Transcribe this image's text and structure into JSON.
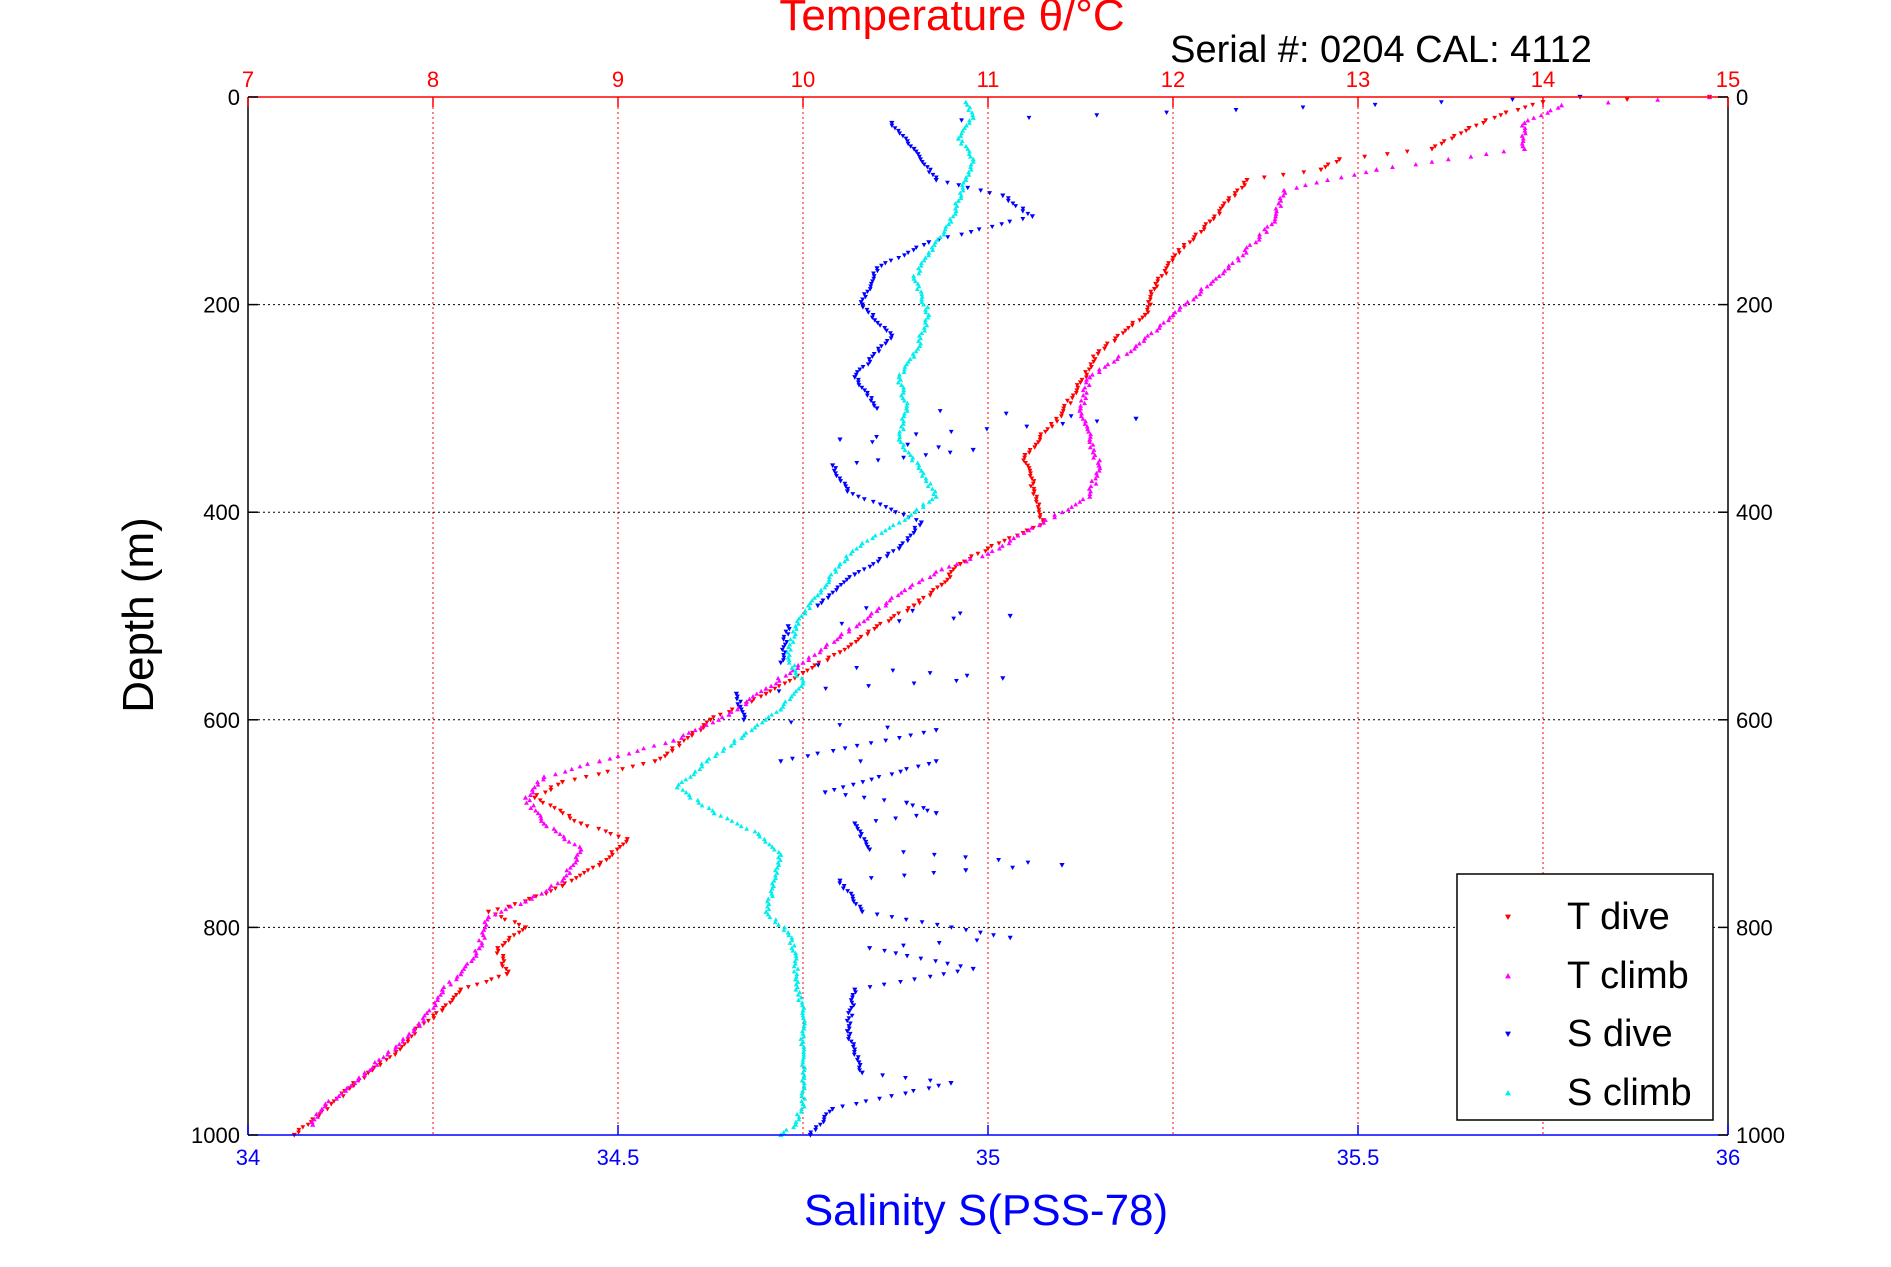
{
  "chart_data": {
    "type": "scatter",
    "title": "Temperature θ/°C",
    "subtitle": "Serial #: 0204  CAL: 4112",
    "xlabel": "Salinity S(PSS-78)",
    "ylabel": "Depth (m)",
    "top_axis": {
      "label": "Temperature θ/°C",
      "lim": [
        7,
        15
      ],
      "ticks": [
        "7",
        "8",
        "9",
        "10",
        "11",
        "12",
        "13",
        "14",
        "15"
      ],
      "color": "#ff0000"
    },
    "bottom_axis": {
      "label": "Salinity S(PSS-78)",
      "lim": [
        34,
        36
      ],
      "ticks": [
        "34",
        "34.5",
        "35",
        "35.5",
        "36"
      ],
      "color": "#0000ff"
    },
    "y_axis": {
      "lim": [
        0,
        1000
      ],
      "inverted": true,
      "ticks": [
        "0",
        "200",
        "400",
        "600",
        "800",
        "1000"
      ]
    },
    "grid": true,
    "legend_position": "bottom-right",
    "series": [
      {
        "name": "T dive",
        "axis": "temperature",
        "color": "#ff0000",
        "marker": "triangle-down",
        "points": [
          [
            14.9,
            0
          ],
          [
            14.0,
            5
          ],
          [
            13.8,
            15
          ],
          [
            13.6,
            30
          ],
          [
            13.4,
            50
          ],
          [
            12.9,
            60
          ],
          [
            12.8,
            70
          ],
          [
            12.4,
            80
          ],
          [
            12.3,
            100
          ],
          [
            12.2,
            120
          ],
          [
            12.0,
            155
          ],
          [
            11.9,
            185
          ],
          [
            11.85,
            210
          ],
          [
            11.6,
            245
          ],
          [
            11.5,
            275
          ],
          [
            11.4,
            305
          ],
          [
            11.2,
            345
          ],
          [
            11.25,
            380
          ],
          [
            11.3,
            410
          ],
          [
            11.0,
            435
          ],
          [
            10.85,
            450
          ],
          [
            10.75,
            470
          ],
          [
            10.6,
            490
          ],
          [
            10.4,
            510
          ],
          [
            10.2,
            535
          ],
          [
            10.0,
            555
          ],
          [
            9.8,
            575
          ],
          [
            9.5,
            600
          ],
          [
            9.4,
            615
          ],
          [
            9.2,
            640
          ],
          [
            8.7,
            660
          ],
          [
            8.55,
            675
          ],
          [
            8.8,
            700
          ],
          [
            9.05,
            715
          ],
          [
            8.9,
            740
          ],
          [
            8.7,
            760
          ],
          [
            8.5,
            775
          ],
          [
            8.3,
            785
          ],
          [
            8.5,
            800
          ],
          [
            8.35,
            820
          ],
          [
            8.4,
            845
          ],
          [
            8.15,
            860
          ],
          [
            8.05,
            880
          ],
          [
            7.9,
            900
          ],
          [
            7.8,
            920
          ],
          [
            7.65,
            940
          ],
          [
            7.55,
            955
          ],
          [
            7.45,
            970
          ],
          [
            7.35,
            985
          ],
          [
            7.25,
            1000
          ]
        ]
      },
      {
        "name": "T climb",
        "axis": "temperature",
        "color": "#ff00ff",
        "marker": "triangle-up",
        "points": [
          [
            14.9,
            0
          ],
          [
            14.1,
            8
          ],
          [
            13.9,
            25
          ],
          [
            13.9,
            50
          ],
          [
            13.1,
            70
          ],
          [
            12.6,
            90
          ],
          [
            12.55,
            120
          ],
          [
            12.3,
            165
          ],
          [
            12.0,
            210
          ],
          [
            11.8,
            240
          ],
          [
            11.55,
            270
          ],
          [
            11.5,
            300
          ],
          [
            11.55,
            330
          ],
          [
            11.6,
            355
          ],
          [
            11.55,
            385
          ],
          [
            11.3,
            410
          ],
          [
            11.0,
            440
          ],
          [
            10.75,
            455
          ],
          [
            10.55,
            475
          ],
          [
            10.4,
            495
          ],
          [
            10.2,
            520
          ],
          [
            10.0,
            545
          ],
          [
            9.8,
            570
          ],
          [
            9.6,
            595
          ],
          [
            9.3,
            620
          ],
          [
            8.9,
            640
          ],
          [
            8.6,
            655
          ],
          [
            8.5,
            675
          ],
          [
            8.6,
            700
          ],
          [
            8.8,
            725
          ],
          [
            8.7,
            755
          ],
          [
            8.5,
            775
          ],
          [
            8.3,
            790
          ],
          [
            8.25,
            820
          ],
          [
            8.15,
            845
          ],
          [
            8.05,
            860
          ],
          [
            7.95,
            890
          ],
          [
            7.8,
            915
          ],
          [
            7.6,
            945
          ],
          [
            7.4,
            975
          ],
          [
            7.35,
            990
          ]
        ]
      },
      {
        "name": "S dive",
        "axis": "salinity",
        "color": "#0000ff",
        "marker": "triangle-down",
        "points": [
          [
            35.8,
            0
          ],
          [
            34.87,
            25
          ],
          [
            34.9,
            50
          ],
          [
            34.93,
            80
          ],
          [
            35.02,
            95
          ],
          [
            35.06,
            115
          ],
          [
            34.92,
            140
          ],
          [
            34.85,
            165
          ],
          [
            34.83,
            200
          ],
          [
            34.87,
            230
          ],
          [
            34.82,
            270
          ],
          [
            34.85,
            300
          ],
          [
            34.8,
            330
          ],
          [
            34.79,
            355
          ],
          [
            34.81,
            380
          ],
          [
            34.91,
            410
          ],
          [
            34.88,
            435
          ],
          [
            34.82,
            460
          ],
          [
            34.77,
            490
          ],
          [
            34.73,
            510
          ],
          [
            34.72,
            545
          ],
          [
            34.66,
            575
          ],
          [
            34.67,
            600
          ],
          [
            34.72,
            640
          ],
          [
            34.78,
            670
          ],
          [
            34.82,
            700
          ],
          [
            34.84,
            725
          ],
          [
            34.8,
            755
          ],
          [
            34.83,
            785
          ],
          [
            34.84,
            820
          ],
          [
            34.82,
            860
          ],
          [
            34.81,
            900
          ],
          [
            34.83,
            940
          ],
          [
            34.79,
            975
          ],
          [
            34.76,
            1000
          ],
          [
            35.2,
            310
          ],
          [
            34.98,
            340
          ],
          [
            35.03,
            500
          ],
          [
            35.02,
            560
          ],
          [
            34.93,
            610
          ],
          [
            34.93,
            640
          ],
          [
            34.89,
            680
          ],
          [
            34.93,
            690
          ],
          [
            35.1,
            740
          ],
          [
            34.97,
            745
          ],
          [
            35.03,
            810
          ],
          [
            34.98,
            840
          ],
          [
            34.95,
            950
          ]
        ]
      },
      {
        "name": "S climb",
        "axis": "salinity",
        "color": "#00eeee",
        "marker": "triangle-up",
        "points": [
          [
            34.97,
            5
          ],
          [
            34.98,
            20
          ],
          [
            34.96,
            40
          ],
          [
            34.98,
            60
          ],
          [
            34.97,
            80
          ],
          [
            34.96,
            100
          ],
          [
            34.95,
            120
          ],
          [
            34.92,
            150
          ],
          [
            34.9,
            175
          ],
          [
            34.92,
            210
          ],
          [
            34.9,
            250
          ],
          [
            34.88,
            270
          ],
          [
            34.89,
            300
          ],
          [
            34.88,
            330
          ],
          [
            34.91,
            360
          ],
          [
            34.93,
            385
          ],
          [
            34.88,
            410
          ],
          [
            34.83,
            430
          ],
          [
            34.8,
            450
          ],
          [
            34.77,
            480
          ],
          [
            34.74,
            510
          ],
          [
            34.73,
            540
          ],
          [
            34.75,
            565
          ],
          [
            34.72,
            590
          ],
          [
            34.67,
            615
          ],
          [
            34.62,
            640
          ],
          [
            34.58,
            665
          ],
          [
            34.63,
            690
          ],
          [
            34.69,
            710
          ],
          [
            34.72,
            730
          ],
          [
            34.71,
            760
          ],
          [
            34.7,
            785
          ],
          [
            34.73,
            805
          ],
          [
            34.74,
            825
          ],
          [
            34.74,
            850
          ],
          [
            34.75,
            880
          ],
          [
            34.75,
            910
          ],
          [
            34.75,
            940
          ],
          [
            34.75,
            970
          ],
          [
            34.74,
            990
          ],
          [
            34.72,
            1000
          ]
        ]
      }
    ]
  },
  "legend": {
    "items": [
      {
        "label": "T dive",
        "color": "#ff0000"
      },
      {
        "label": "T climb",
        "color": "#ff00ff"
      },
      {
        "label": "S dive",
        "color": "#0000ff"
      },
      {
        "label": "S climb",
        "color": "#00eeee"
      }
    ]
  }
}
